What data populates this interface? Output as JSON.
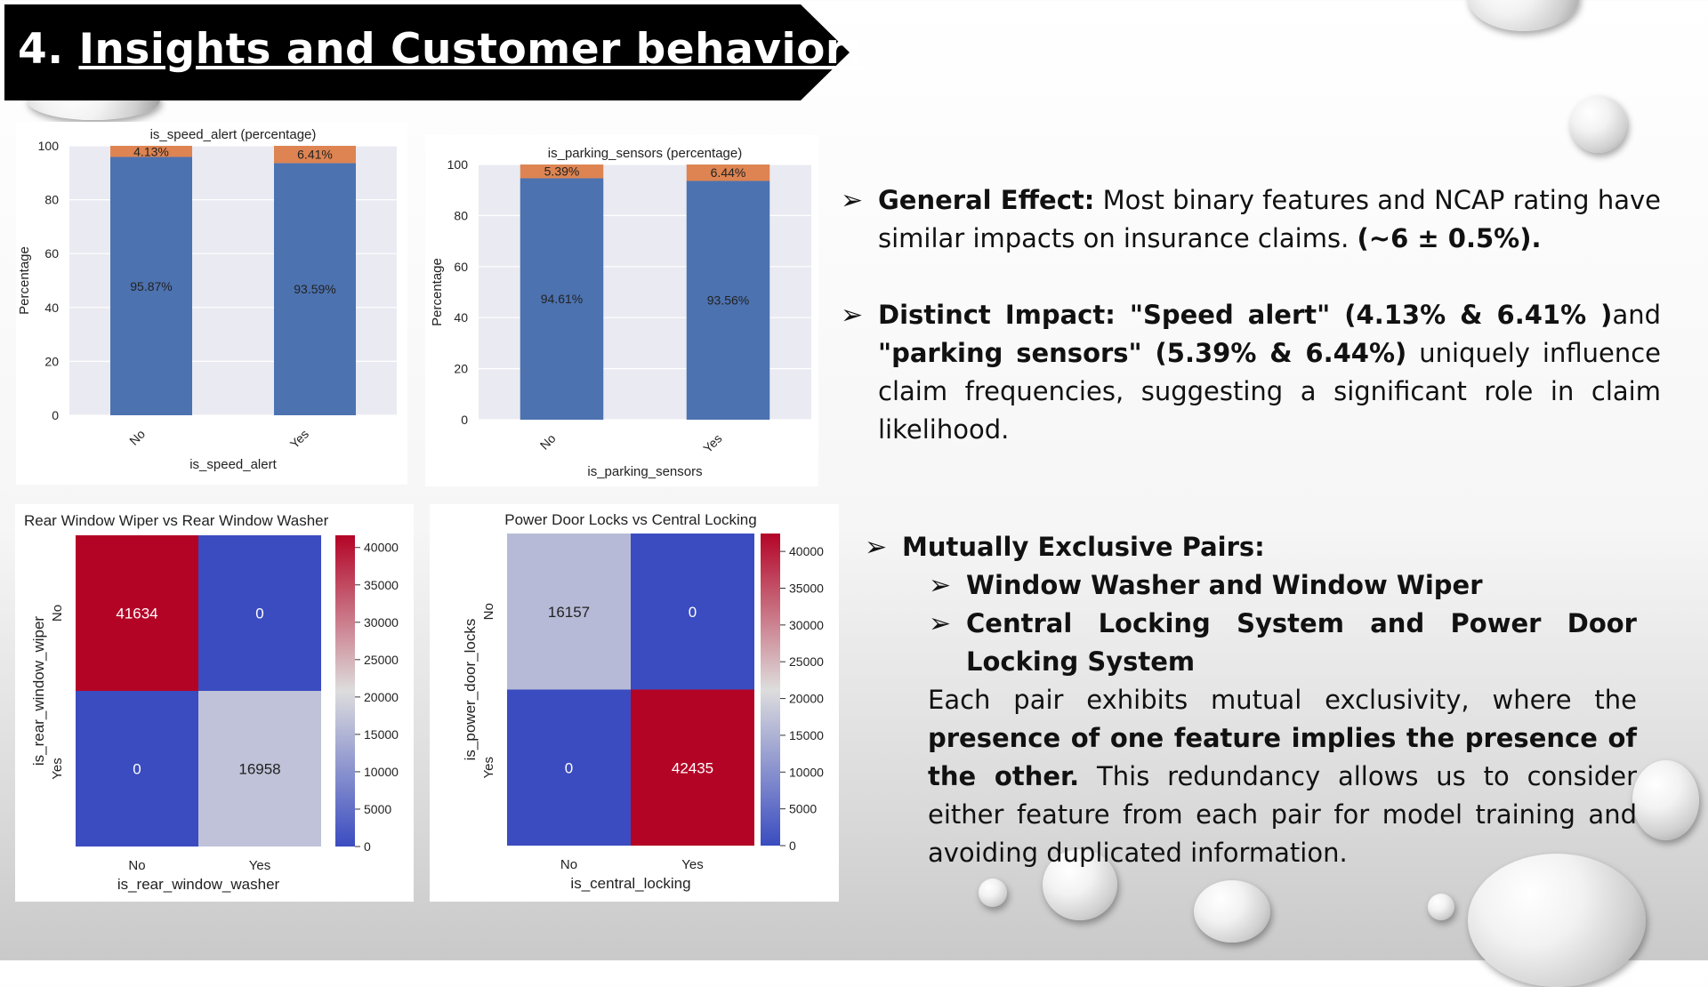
{
  "slide": {
    "title_number": "4.",
    "title_text": "Insights and Customer behavior:"
  },
  "chart_data": [
    {
      "type": "bar",
      "stacked": true,
      "title": "is_speed_alert (percentage)",
      "xlabel": "is_speed_alert",
      "ylabel": "Percentage",
      "categories": [
        "No",
        "Yes"
      ],
      "ylim": [
        0,
        100
      ],
      "yticks": [
        "0",
        "20",
        "40",
        "60",
        "80",
        "100"
      ],
      "series": [
        {
          "values": [
            95.87,
            93.59
          ],
          "labels": [
            "95.87%",
            "93.59%"
          ],
          "color": "#4c72b0"
        },
        {
          "values": [
            4.13,
            6.41
          ],
          "labels": [
            "4.13%",
            "6.41%"
          ],
          "color": "#dd8452"
        }
      ],
      "grid": true
    },
    {
      "type": "bar",
      "stacked": true,
      "title": "is_parking_sensors (percentage)",
      "xlabel": "is_parking_sensors",
      "ylabel": "Percentage",
      "categories": [
        "No",
        "Yes"
      ],
      "ylim": [
        0,
        100
      ],
      "yticks": [
        "0",
        "20",
        "40",
        "60",
        "80",
        "100"
      ],
      "series": [
        {
          "values": [
            94.61,
            93.56
          ],
          "labels": [
            "94.61%",
            "93.56%"
          ],
          "color": "#4c72b0"
        },
        {
          "values": [
            5.39,
            6.44
          ],
          "labels": [
            "5.39%",
            "6.44%"
          ],
          "color": "#dd8452"
        }
      ],
      "grid": true
    },
    {
      "type": "heatmap",
      "title": "Rear Window Wiper vs Rear Window Washer",
      "xlabel": "is_rear_window_washer",
      "ylabel": "is_rear_window_wiper",
      "x_categories": [
        "No",
        "Yes"
      ],
      "y_categories": [
        "No",
        "Yes"
      ],
      "values": [
        [
          41634,
          0
        ],
        [
          0,
          16958
        ]
      ],
      "value_labels": [
        [
          "41634",
          "0"
        ],
        [
          "0",
          "16958"
        ]
      ],
      "colormap": "coolwarm",
      "vmax": 41634,
      "colorbar_ticks": [
        "0",
        "5000",
        "10000",
        "15000",
        "20000",
        "25000",
        "30000",
        "35000",
        "40000"
      ]
    },
    {
      "type": "heatmap",
      "title": "Power Door Locks vs Central Locking",
      "xlabel": "is_central_locking",
      "ylabel": "is_power_door_locks",
      "x_categories": [
        "No",
        "Yes"
      ],
      "y_categories": [
        "No",
        "Yes"
      ],
      "values": [
        [
          16157,
          0
        ],
        [
          0,
          42435
        ]
      ],
      "value_labels": [
        [
          "16157",
          "0"
        ],
        [
          "0",
          "42435"
        ]
      ],
      "colormap": "coolwarm",
      "vmax": 42435,
      "colorbar_ticks": [
        "0",
        "5000",
        "10000",
        "15000",
        "20000",
        "25000",
        "30000",
        "35000",
        "40000"
      ]
    }
  ],
  "insights": {
    "arrow": "➢",
    "general_label": "General Effect:",
    "general_text": " Most binary features and NCAP rating have similar impacts on insurance claims. ",
    "general_bold_tail": "(~6 ± 0.5%).",
    "distinct_label": "Distinct Impact:",
    "distinct_bold_1": " \"Speed alert\" (4.13% & 6.41% )",
    "distinct_text_1": "and ",
    "distinct_bold_2": "\"parking sensors\" (5.39% & 6.44%)",
    "distinct_text_2": " uniquely influence claim frequencies, suggesting a significant role in claim likelihood.",
    "mutual_label": "Mutually Exclusive Pairs:",
    "pair_1": "Window Washer and Window Wiper",
    "pair_2": "Central Locking System and Power Door Locking System",
    "para_text_1": "Each pair exhibits mutual exclusivity, where the ",
    "para_bold": "presence of one feature implies the presence of the other.",
    "para_text_2": " This redundancy allows us to consider either feature from each pair for model training and avoiding duplicated information."
  }
}
